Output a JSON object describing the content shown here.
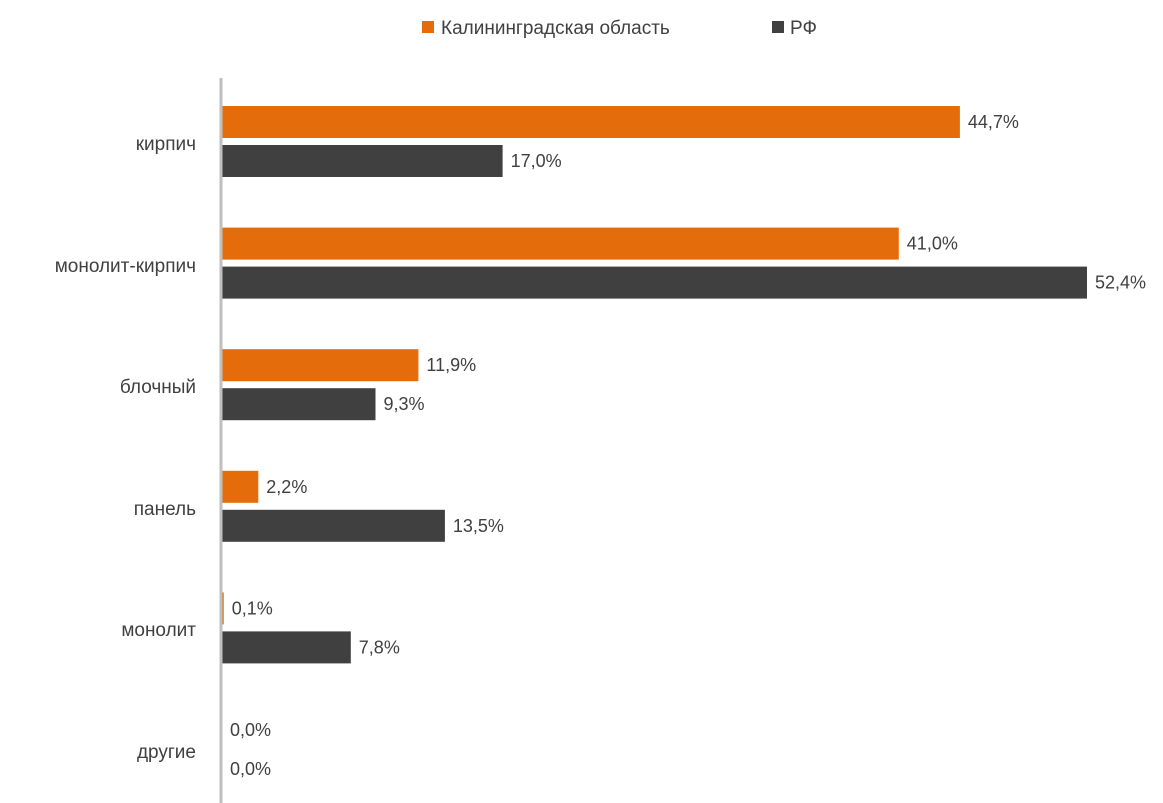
{
  "chart_data": {
    "type": "bar",
    "orientation": "horizontal",
    "categories": [
      "кирпич",
      "монолит-кирпич",
      "блочный",
      "панель",
      "монолит",
      "другие"
    ],
    "series": [
      {
        "name": "Калининградская область",
        "color": "#E46C0A",
        "values": [
          44.7,
          41.0,
          11.9,
          2.2,
          0.1,
          0.0
        ],
        "labels": [
          "44,7%",
          "41,0%",
          "11,9%",
          "2,2%",
          "0,1%",
          "0,0%"
        ]
      },
      {
        "name": "РФ",
        "color": "#404040",
        "values": [
          17.0,
          52.4,
          9.3,
          13.5,
          7.8,
          0.0
        ],
        "labels": [
          "17,0%",
          "52,4%",
          "9,3%",
          "13,5%",
          "7,8%",
          "0,0%"
        ]
      }
    ],
    "xlim": [
      0,
      52.4
    ],
    "grid": false,
    "legend_position": "top"
  }
}
